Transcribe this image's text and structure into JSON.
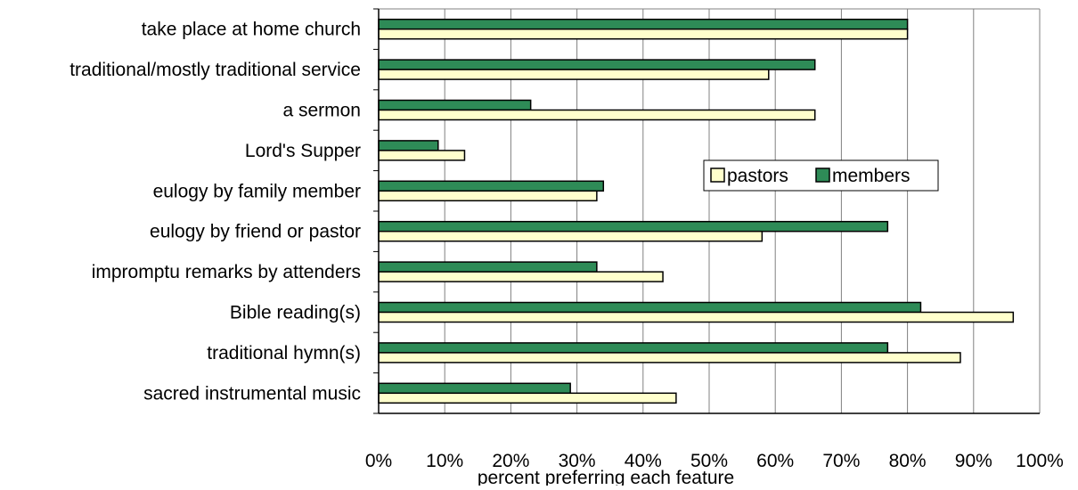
{
  "chart_data": {
    "type": "bar",
    "orientation": "horizontal",
    "categories": [
      "take place at home church",
      "traditional/mostly traditional service",
      "a sermon",
      "Lord's Supper",
      "eulogy by family member",
      "eulogy by friend or pastor",
      "impromptu remarks by attenders",
      "Bible reading(s)",
      "traditional hymn(s)",
      "sacred instrumental music"
    ],
    "series": [
      {
        "name": "members",
        "color": "#2e8b57",
        "values": [
          80,
          66,
          23,
          9,
          34,
          77,
          33,
          82,
          77,
          29
        ]
      },
      {
        "name": "pastors",
        "color": "#ffffcc",
        "values": [
          80,
          59,
          66,
          13,
          33,
          58,
          43,
          96,
          88,
          45
        ]
      }
    ],
    "legend_order": [
      "pastors",
      "members"
    ],
    "legend_position": "center-right",
    "xlim": [
      0,
      100
    ],
    "x_ticks": [
      "0%",
      "10%",
      "20%",
      "30%",
      "40%",
      "50%",
      "60%",
      "70%",
      "80%",
      "90%",
      "100%"
    ],
    "xlabel": "percent preferring each feature",
    "ylabel": "",
    "title": "",
    "grid": "vertical"
  }
}
